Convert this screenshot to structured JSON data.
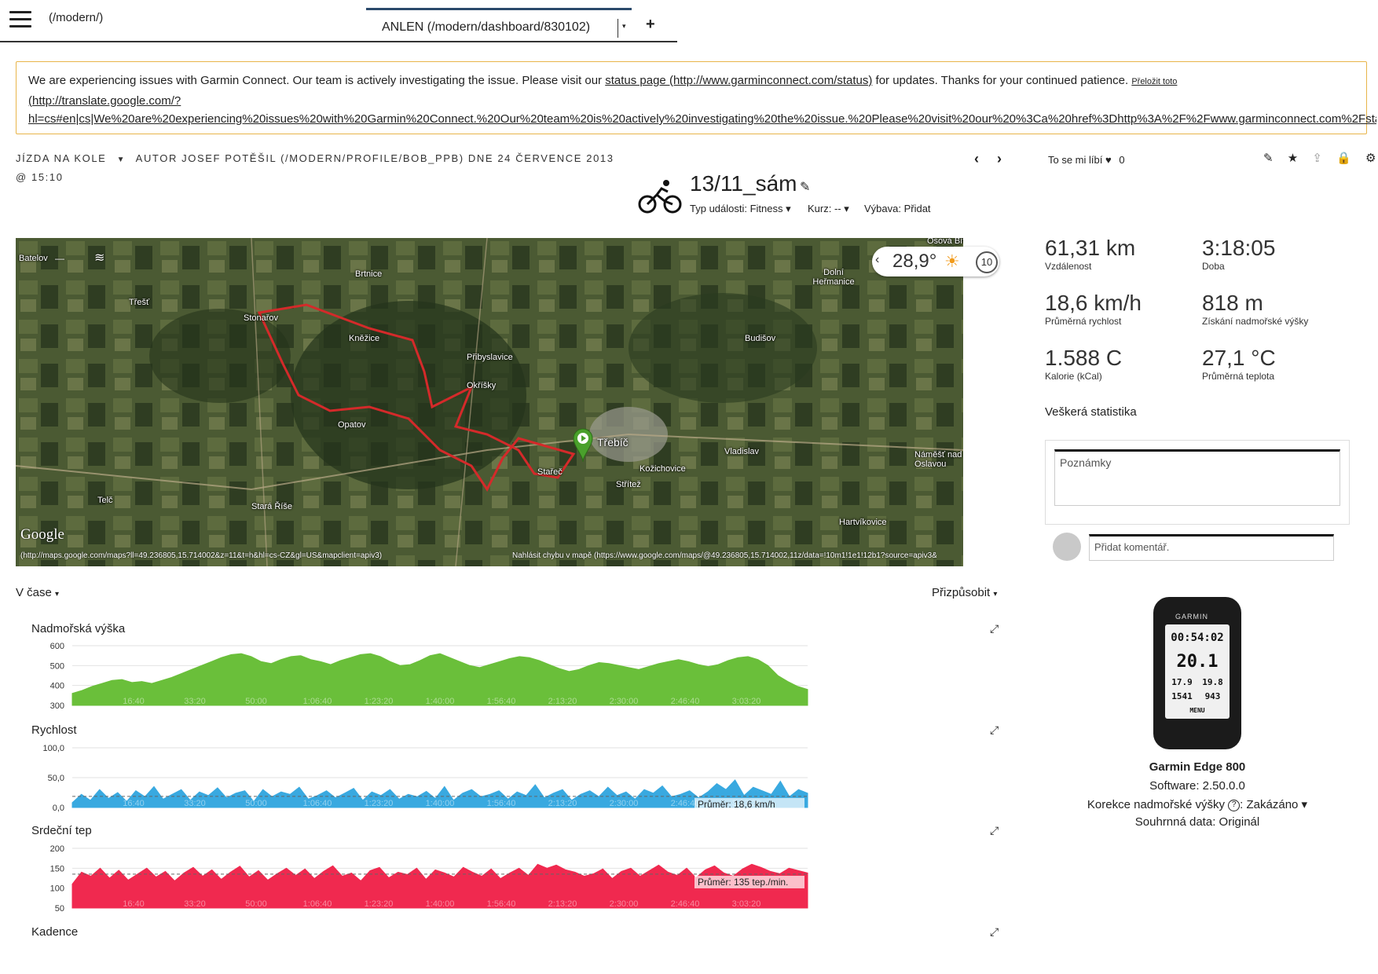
{
  "topbar": {
    "path": "(/modern/)",
    "tab_label": "ANLEN (/modern/dashboard/830102)",
    "add_tab": "+"
  },
  "banner": {
    "text_before": "We are experiencing issues with Garmin Connect. Our team is actively investigating the issue. Please visit our ",
    "link_text": "status page (http://www.garminconnect.com/status)",
    "text_after": " for updates. Thanks for your continued patience. ",
    "translate_text": "Přeložit toto",
    "translate_url1": "(http://translate.google.com/?",
    "translate_url2": "hl=cs#en|cs|We%20are%20experiencing%20issues%20with%20Garmin%20Connect.%20Our%20team%20is%20actively%20investigating%20the%20issue.%20Please%20visit%20our%20%3Ca%20href%3Dhttp%3A%2F%2Fwww.garminconnect.com%2Fsta"
  },
  "activity": {
    "type": "JÍZDA NA KOLE",
    "author": "AUTOR JOSEF POTĚŠIL (/MODERN/PROFILE/BOB_PPB) DNE 24 ČERVENCE 2013",
    "time": "@ 15:10",
    "title": "13/11_sám",
    "event_type": "Typ události: Fitness",
    "course": "Kurz: --",
    "gear": "Výbava: Přidat",
    "like_text": "To se mi líbí",
    "like_count": "0"
  },
  "map": {
    "temperature": "28,9°",
    "ten_label": "10",
    "google_label": "Google",
    "footer_left": "(http://maps.google.com/maps?ll=49.236805,15.714002&z=11&t=h&hl=cs-CZ&gl=US&mapclient=apiv3)",
    "footer_right": "Nahlásit chybu v mapě (https://www.google.com/maps/@49.236805,15.714002,11z/data=!10m1!1e1!12b1?source=apiv3&rapsrc=apiv3)",
    "labels": [
      {
        "name": "Batelov"
      },
      {
        "name": "Třešť"
      },
      {
        "name": "Brtnice"
      },
      {
        "name": "Stonařov"
      },
      {
        "name": "Kněžice"
      },
      {
        "name": "Přibyslavice"
      },
      {
        "name": "Okříšky"
      },
      {
        "name": "Opatov"
      },
      {
        "name": "Třebíč"
      },
      {
        "name": "Stařeč"
      },
      {
        "name": "Kožichovice"
      },
      {
        "name": "Střítež"
      },
      {
        "name": "Vladislav"
      },
      {
        "name": "Telč"
      },
      {
        "name": "Stará Říše"
      },
      {
        "name": "Dolní Heřmanice"
      },
      {
        "name": "Budišov"
      },
      {
        "name": "Náměšť nad Oslavou"
      },
      {
        "name": "Hartvíkovice"
      },
      {
        "name": "Osová Bítýška"
      }
    ]
  },
  "stats": [
    {
      "value": "61,31 km",
      "label": "Vzdálenost"
    },
    {
      "value": "3:18:05",
      "label": "Doba"
    },
    {
      "value": "18,6 km/h",
      "label": "Průměrná rychlost"
    },
    {
      "value": "818 m",
      "label": "Získání nadmořské výšky"
    },
    {
      "value": "1.588 C",
      "label": "Kalorie (kCal)"
    },
    {
      "value": "27,1 °C",
      "label": "Průměrná teplota"
    }
  ],
  "all_stats_label": "Veškerá statistika",
  "notes_placeholder": "Poznámky",
  "comment_placeholder": "Přidat komentář.",
  "device": {
    "brand": "GARMIN",
    "screen_time": "00:54:02",
    "screen_speed": "20.1",
    "screen_dist": "17.9",
    "screen_avg": "19.8",
    "screen_elev": "1541",
    "screen_asc": "943",
    "screen_menu": "MENU",
    "name": "Garmin Edge 800",
    "software": "Software: 2.50.0.0",
    "elev_correction": "Korekce nadmořské výšky",
    "elev_value": "Zakázáno",
    "summary": "Souhrnná data: Originál"
  },
  "charts_header": {
    "time_mode": "V čase",
    "customize": "Přizpůsobit"
  },
  "colors": {
    "elevation": "#6abf3a",
    "speed": "#39a9e0",
    "heart": "#f0294f",
    "route": "#d42a2a"
  },
  "chart_data": [
    {
      "type": "area",
      "title": "Nadmořská výška",
      "ylim": [
        300,
        600
      ],
      "yticks": [
        "600",
        "500",
        "400",
        "300"
      ],
      "xticks": [
        "16:40",
        "33:20",
        "50:00",
        "1:06:40",
        "1:23:20",
        "1:40:00",
        "1:56:40",
        "2:13:20",
        "2:30:00",
        "2:46:40",
        "3:03:20"
      ],
      "values": [
        360,
        375,
        395,
        410,
        425,
        430,
        415,
        420,
        410,
        425,
        440,
        460,
        480,
        500,
        520,
        540,
        555,
        560,
        545,
        520,
        510,
        530,
        545,
        550,
        530,
        520,
        505,
        525,
        540,
        555,
        560,
        545,
        520,
        500,
        505,
        525,
        550,
        560,
        540,
        520,
        500,
        490,
        505,
        520,
        535,
        545,
        540,
        525,
        505,
        485,
        470,
        480,
        500,
        515,
        510,
        500,
        490,
        480,
        495,
        510,
        520,
        530,
        520,
        505,
        495,
        505,
        525,
        540,
        545,
        530,
        500,
        450,
        420,
        395,
        380
      ]
    },
    {
      "type": "area",
      "title": "Rychlost",
      "ylim": [
        0,
        100
      ],
      "yticks": [
        "100,0",
        "50,0",
        "0,0"
      ],
      "xticks": [
        "16:40",
        "33:20",
        "50:00",
        "1:06:40",
        "1:23:20",
        "1:40:00",
        "1:56:40",
        "2:13:20",
        "2:30:00",
        "2:46:40",
        "3:03:20"
      ],
      "average_label": "Průměr: 18,6 km/h",
      "average_value": 18.6,
      "values": [
        8,
        22,
        12,
        30,
        15,
        25,
        10,
        28,
        18,
        35,
        14,
        22,
        30,
        12,
        26,
        20,
        33,
        16,
        24,
        28,
        10,
        30,
        18,
        26,
        22,
        34,
        14,
        20,
        28,
        16,
        24,
        32,
        12,
        26,
        20,
        30,
        14,
        22,
        18,
        27,
        15,
        35,
        12,
        24,
        30,
        18,
        22,
        28,
        14,
        26,
        20,
        38,
        16,
        24,
        30,
        12,
        22,
        28,
        18,
        34,
        20,
        26,
        14,
        30,
        24,
        36,
        18,
        22,
        28,
        16,
        26,
        40,
        30,
        46,
        20,
        34,
        28,
        22,
        44,
        18,
        30,
        24
      ]
    },
    {
      "type": "area",
      "title": "Srdeční tep",
      "ylim": [
        50,
        200
      ],
      "yticks": [
        "200",
        "150",
        "100",
        "50"
      ],
      "xticks": [
        "16:40",
        "33:20",
        "50:00",
        "1:06:40",
        "1:23:20",
        "1:40:00",
        "1:56:40",
        "2:13:20",
        "2:30:00",
        "2:46:40",
        "3:03:20"
      ],
      "average_label": "Průměr: 135 tep./min.",
      "average_value": 135,
      "values": [
        110,
        140,
        130,
        150,
        125,
        145,
        120,
        135,
        150,
        128,
        142,
        118,
        138,
        152,
        130,
        146,
        122,
        140,
        155,
        128,
        144,
        120,
        136,
        150,
        132,
        148,
        124,
        142,
        156,
        130,
        138,
        118,
        144,
        152,
        126,
        140,
        134,
        150,
        122,
        146,
        138,
        128,
        152,
        140,
        130,
        148,
        124,
        138,
        150,
        132,
        160,
        150,
        158,
        146,
        140,
        130,
        136,
        148,
        124,
        142,
        150,
        130,
        144,
        158,
        140,
        132,
        150,
        126,
        146,
        156,
        138,
        130,
        148,
        160,
        152,
        142,
        136,
        150,
        144,
        138
      ]
    },
    {
      "type": "area",
      "title": "Kadence",
      "values": []
    }
  ]
}
